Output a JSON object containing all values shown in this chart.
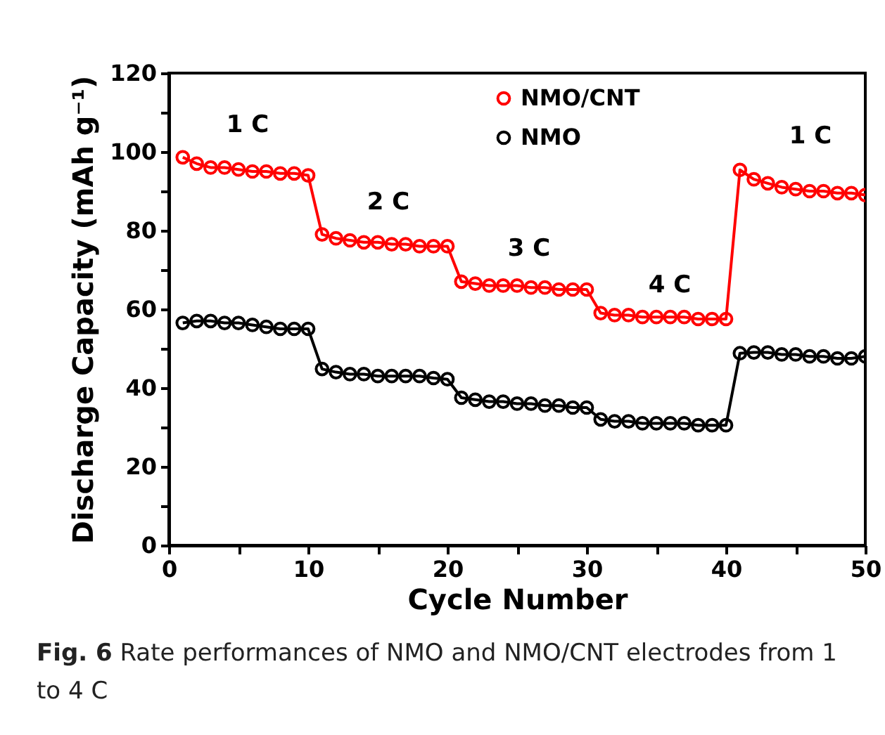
{
  "chart_data": {
    "type": "line",
    "x": [
      1,
      2,
      3,
      4,
      5,
      6,
      7,
      8,
      9,
      10,
      11,
      12,
      13,
      14,
      15,
      16,
      17,
      18,
      19,
      20,
      21,
      22,
      23,
      24,
      25,
      26,
      27,
      28,
      29,
      30,
      31,
      32,
      33,
      34,
      35,
      36,
      37,
      38,
      39,
      40,
      41,
      42,
      43,
      44,
      45,
      46,
      47,
      48,
      49,
      50
    ],
    "series": [
      {
        "name": "NMO/CNT",
        "color": "#ff0000",
        "values": [
          98.6,
          97,
          96,
          96,
          95.5,
          95,
          95,
          94.5,
          94.5,
          94,
          79,
          78,
          77.5,
          77,
          77,
          76.5,
          76.5,
          76,
          76,
          76,
          67,
          66.5,
          66,
          66,
          66,
          65.5,
          65.5,
          65,
          65,
          65,
          59,
          58.5,
          58.5,
          58,
          58,
          58,
          58,
          57.5,
          57.5,
          57.5,
          95.4,
          93,
          92,
          91,
          90.5,
          90,
          90,
          89.5,
          89.5,
          89
        ]
      },
      {
        "name": "NMO",
        "color": "#000000",
        "values": [
          56.5,
          57,
          57,
          56.5,
          56.5,
          56,
          55.5,
          55,
          55,
          55,
          44.8,
          44,
          43.5,
          43.5,
          43,
          43,
          43,
          43,
          42.5,
          42.2,
          37.5,
          37,
          36.5,
          36.5,
          36,
          36,
          35.5,
          35.5,
          35,
          35,
          32,
          31.5,
          31.5,
          31,
          31,
          31,
          31,
          30.5,
          30.5,
          30.5,
          48.8,
          49,
          49,
          48.5,
          48.5,
          48,
          48,
          47.5,
          47.5,
          48
        ]
      }
    ],
    "xlabel": "Cycle Number",
    "ylabel": "Discharge Capacity (mAh g⁻¹)",
    "xlim": [
      0,
      50
    ],
    "ylim": [
      0,
      120
    ],
    "xticks": [
      0,
      {
        "value": 5,
        "label": null
      },
      10,
      {
        "value": 15,
        "label": null
      },
      20,
      {
        "value": 25,
        "label": null
      },
      30,
      {
        "value": 35,
        "label": null
      },
      40,
      {
        "value": 45,
        "label": null
      },
      50
    ],
    "yticks": [
      0,
      {
        "value": 10,
        "label": null
      },
      20,
      {
        "value": 30,
        "label": null
      },
      40,
      {
        "value": 50,
        "label": null
      },
      60,
      {
        "value": 70,
        "label": null
      },
      80,
      {
        "value": 90,
        "label": null
      },
      100,
      {
        "value": 110,
        "label": null
      },
      120
    ],
    "grid": false,
    "legend": "top right",
    "marker": "circle",
    "line_style": "solid",
    "annotations": [
      "1 C",
      "2 C",
      "3 C",
      "4 C",
      "1 C",
      "Fig. 6 Rate performances of NMO and NMO/CNT electrodes from 1 to 4 C"
    ]
  }
}
